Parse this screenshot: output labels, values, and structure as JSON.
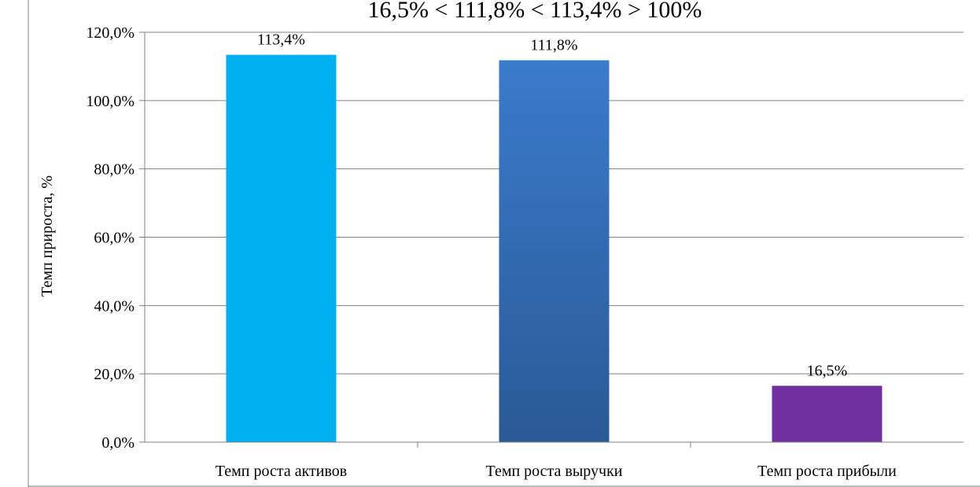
{
  "chart_data": {
    "type": "bar",
    "title": "16,5% < 111,8% < 113,4% > 100%",
    "xlabel": "",
    "ylabel": "Темп прироста, %",
    "categories": [
      "Темп роста активов",
      "Темп роста выручки",
      "Темп роста прибыли"
    ],
    "values": [
      113.4,
      111.8,
      16.5
    ],
    "data_labels": [
      "113,4%",
      "111,8%",
      "16,5%"
    ],
    "ylim": [
      0,
      120
    ],
    "y_ticks": [
      0,
      20,
      40,
      60,
      80,
      100,
      120
    ],
    "y_tick_labels": [
      "0,0%",
      "20,0%",
      "40,0%",
      "60,0%",
      "80,0%",
      "100,0%",
      "120,0%"
    ],
    "grid": true,
    "legend": "none",
    "colors": {
      "bars": [
        "#00b0f0",
        "#3b7bcc",
        "#7030a0"
      ],
      "bar_gradient_bottom": "#2a5a96",
      "gridline": "#808080",
      "axis": "#808080",
      "frame": "#808080"
    }
  }
}
